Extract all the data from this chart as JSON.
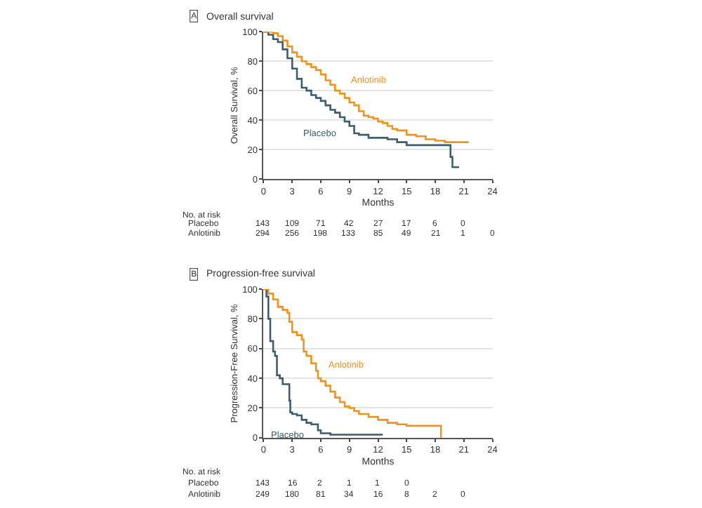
{
  "chart_data": [
    {
      "type": "step",
      "title": "Overall survival",
      "xlabel": "Months",
      "ylabel": "Overall Survival, %",
      "xlim": [
        0,
        24
      ],
      "xticks": [
        0,
        3,
        6,
        9,
        12,
        15,
        18,
        21,
        24
      ],
      "ylim": [
        0,
        100
      ],
      "yticks": [
        0,
        20,
        40,
        60,
        80,
        100
      ],
      "grid": "y",
      "legend": false,
      "marker": "none",
      "line_style": "solid",
      "annotations": [
        "A",
        "No. at risk",
        "Placebo 143 109 71 42 27 17 6 0",
        "Anlotinib 294 256 198 133 85 49 21 1 0"
      ],
      "series": [
        {
          "name": "Placebo",
          "color": "#3d5c6c",
          "x": [
            0,
            0.5,
            1,
            1.5,
            2,
            2.5,
            3,
            3.5,
            4,
            4.5,
            5,
            5.5,
            6,
            6.5,
            7,
            7.5,
            8,
            8.5,
            9,
            9.5,
            10,
            10.5,
            11,
            12.5,
            13,
            14,
            15,
            17,
            19.5,
            19.6,
            19.8,
            20.5
          ],
          "values": [
            100,
            98,
            95,
            93,
            88,
            82,
            75,
            68,
            62,
            60,
            57,
            55,
            53,
            50,
            47,
            45,
            42,
            39,
            36,
            31,
            30,
            30,
            28,
            28,
            27,
            25,
            23,
            23,
            23,
            15,
            8,
            8
          ]
        },
        {
          "name": "Anlotinib",
          "color": "#f0921e",
          "x": [
            0,
            0.5,
            1,
            1.5,
            2,
            2.5,
            3,
            3.5,
            4,
            4.5,
            5,
            5.5,
            6,
            6.5,
            7,
            7.5,
            8,
            8.5,
            9,
            9.5,
            10,
            10.5,
            11,
            11.5,
            12,
            12.5,
            13,
            13.5,
            14,
            15,
            16,
            17,
            18,
            19,
            20,
            21.5
          ],
          "values": [
            100,
            100,
            99,
            97,
            94,
            90,
            86,
            83,
            80,
            78,
            76,
            74,
            71,
            67,
            64,
            60,
            58,
            55,
            52,
            50,
            46,
            43,
            42,
            41,
            39,
            38,
            36,
            34,
            33,
            30,
            29,
            27,
            26,
            25,
            25,
            25
          ]
        }
      ]
    },
    {
      "type": "step",
      "title": "Progression-free survival",
      "xlabel": "Months",
      "ylabel": "Progression-Free Survival, %",
      "xlim": [
        0,
        24
      ],
      "xticks": [
        0,
        3,
        6,
        9,
        12,
        15,
        18,
        21,
        24
      ],
      "ylim": [
        0,
        100
      ],
      "yticks": [
        0,
        20,
        40,
        60,
        80,
        100
      ],
      "grid": "y",
      "legend": false,
      "marker": "none",
      "line_style": "solid",
      "annotations": [
        "B",
        "No. at risk",
        "Placebo 143 16 2 1 1 0",
        "Anlotinib 249 180 81 34 16 8 2 0"
      ],
      "series": [
        {
          "name": "Placebo",
          "color": "#3d5c6c",
          "x": [
            0,
            0.3,
            0.5,
            0.7,
            1,
            1.2,
            1.4,
            1.7,
            2,
            2.5,
            2.7,
            2.8,
            3,
            3.5,
            4,
            4.5,
            5,
            5.5,
            5.7,
            6,
            7,
            8,
            12.5
          ],
          "values": [
            100,
            95,
            80,
            65,
            58,
            55,
            42,
            40,
            36,
            36,
            25,
            17,
            16,
            15,
            12,
            10,
            9,
            9,
            5,
            3,
            2,
            2,
            2
          ]
        },
        {
          "name": "Anlotinib",
          "color": "#f0921e",
          "x": [
            0,
            0.5,
            1,
            1.5,
            2,
            2.5,
            2.7,
            3,
            3.5,
            4,
            4.2,
            4.5,
            5,
            5.5,
            5.7,
            6,
            6.5,
            7,
            7.5,
            8,
            8.5,
            9,
            9.5,
            10,
            11,
            12,
            13,
            14,
            15,
            16,
            17,
            18.5,
            18.6
          ],
          "values": [
            100,
            97,
            93,
            88,
            86,
            84,
            78,
            71,
            69,
            66,
            58,
            55,
            50,
            45,
            40,
            38,
            35,
            31,
            27,
            24,
            21,
            20,
            18,
            16,
            14,
            12,
            10,
            9,
            8,
            8,
            8,
            8,
            0
          ]
        }
      ]
    }
  ]
}
